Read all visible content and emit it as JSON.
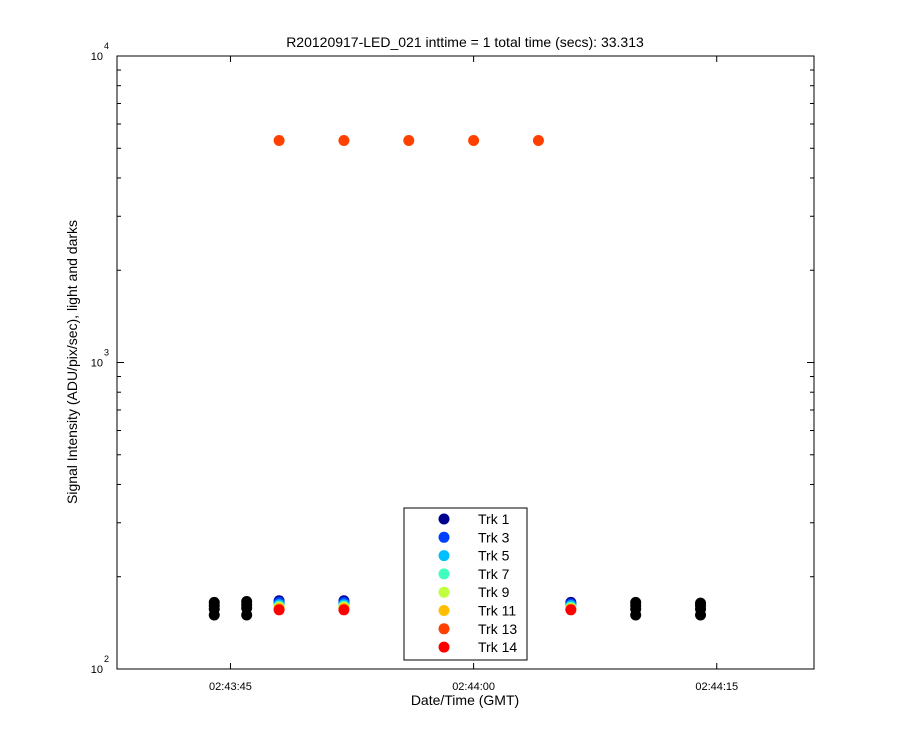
{
  "chart_data": {
    "type": "scatter",
    "title": "R20120917-LED_021 inttime = 1 total time (secs): 33.313",
    "xlabel": "Date/Time (GMT)",
    "ylabel": "Signal Intensity (ADU/pix/sec), light and darks",
    "yscale": "log",
    "ylim": [
      100,
      10000
    ],
    "xlim": [
      "02:43:38",
      "02:44:21"
    ],
    "x_ticks": [
      "02:43:45",
      "02:44:00",
      "02:44:15"
    ],
    "y_ticks": [
      {
        "base": "10",
        "exp": "2",
        "value": 100
      },
      {
        "base": "10",
        "exp": "3",
        "value": 1000
      },
      {
        "base": "10",
        "exp": "4",
        "value": 10000
      }
    ],
    "grid": false,
    "legend_position": "bottom-center",
    "series": [
      {
        "name": "Trk 1",
        "color": "#00008f",
        "x": [
          "02:43:48",
          "02:43:52",
          "02:44:06"
        ],
        "y": [
          167,
          167,
          165
        ]
      },
      {
        "name": "Trk 3",
        "color": "#0040ff",
        "x": [
          "02:43:48",
          "02:43:52",
          "02:44:06"
        ],
        "y": [
          165,
          165,
          163
        ]
      },
      {
        "name": "Trk 5",
        "color": "#00bfff",
        "x": [
          "02:43:48",
          "02:43:52",
          "02:44:06"
        ],
        "y": [
          162,
          162,
          161
        ]
      },
      {
        "name": "Trk 7",
        "color": "#40ffbf",
        "x": [
          "02:43:48",
          "02:43:52",
          "02:44:06"
        ],
        "y": [
          160,
          160,
          159
        ]
      },
      {
        "name": "Trk 9",
        "color": "#bfff40",
        "x": [
          "02:43:48",
          "02:43:52",
          "02:44:06"
        ],
        "y": [
          159,
          159,
          158
        ]
      },
      {
        "name": "Trk 11",
        "color": "#ffbf00",
        "x": [
          "02:43:48",
          "02:43:52",
          "02:44:06"
        ],
        "y": [
          158,
          158,
          157
        ]
      },
      {
        "name": "Trk 13",
        "color": "#ff4000",
        "x": [
          "02:43:48",
          "02:43:52",
          "02:43:56",
          "02:44:00",
          "02:44:04"
        ],
        "y": [
          5300,
          5300,
          5300,
          5300,
          5300
        ]
      },
      {
        "name": "Trk 14",
        "color": "#ff0000",
        "x": [
          "02:43:48",
          "02:43:52",
          "02:44:06"
        ],
        "y": [
          156,
          156,
          156
        ]
      }
    ],
    "darks": {
      "color": "#000000",
      "x": [
        "02:43:44",
        "02:43:44",
        "02:43:44",
        "02:43:44",
        "02:43:46",
        "02:43:46",
        "02:43:46",
        "02:43:46",
        "02:44:10",
        "02:44:10",
        "02:44:10",
        "02:44:10",
        "02:44:14",
        "02:44:14",
        "02:44:14",
        "02:44:14"
      ],
      "y": [
        150,
        157,
        161,
        165,
        150,
        158,
        162,
        166,
        150,
        157,
        161,
        165,
        150,
        157,
        161,
        164
      ]
    }
  }
}
